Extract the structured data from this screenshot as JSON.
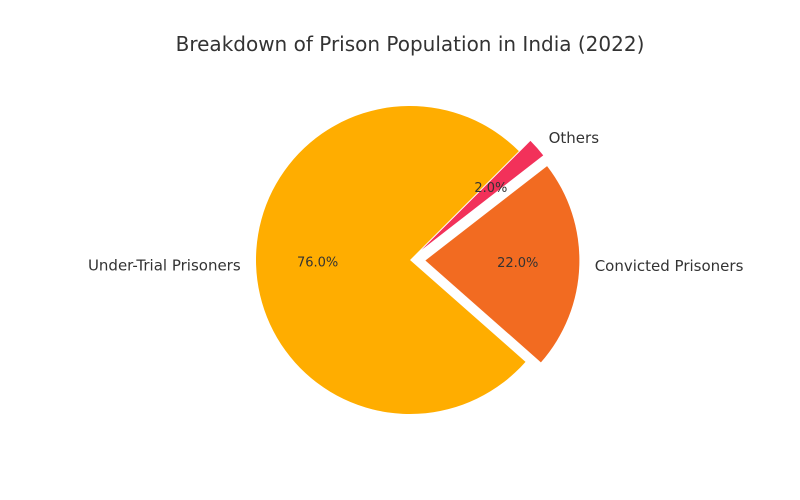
{
  "chart_data": {
    "type": "pie",
    "title": "Breakdown of Prison Population in India (2022)",
    "slices": [
      {
        "label": "Under-Trial Prisoners",
        "value": 76.0,
        "pct_text": "76.0%",
        "color": "#FFAD00",
        "exploded": false
      },
      {
        "label": "Convicted Prisoners",
        "value": 22.0,
        "pct_text": "22.0%",
        "color": "#F26B21",
        "exploded": true
      },
      {
        "label": "Others",
        "value": 2.0,
        "pct_text": "2.0%",
        "color": "#F2315A",
        "exploded": true
      }
    ],
    "start_angle_deg": 45,
    "direction": "counterclockwise"
  }
}
